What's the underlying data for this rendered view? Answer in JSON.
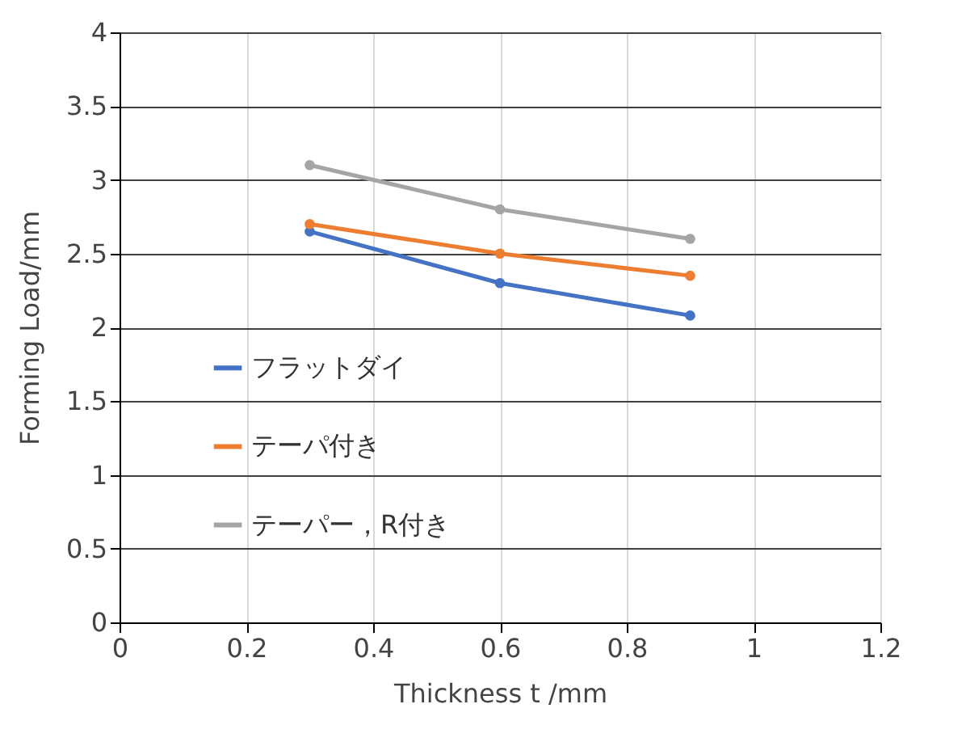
{
  "chart_data": {
    "type": "line",
    "xlabel": "Thickness t /mm",
    "ylabel": "Forming Load/mm",
    "x": [
      0.3,
      0.6,
      0.9
    ],
    "series": [
      {
        "name": "フラットダイ",
        "color": "#4472c4",
        "values": [
          2.65,
          2.3,
          2.08
        ]
      },
      {
        "name": "テーパ付き",
        "color": "#ed7d31",
        "values": [
          2.7,
          2.5,
          2.35
        ]
      },
      {
        "name": "テーパー，R付き",
        "color": "#a5a5a5",
        "values": [
          3.1,
          2.8,
          2.6
        ]
      }
    ],
    "xlim": [
      0,
      1.2
    ],
    "xticks": [
      0,
      0.2,
      0.4,
      0.6,
      0.8,
      1,
      1.2
    ],
    "ylim": [
      0,
      4
    ],
    "yticks": [
      0,
      0.5,
      1,
      1.5,
      2,
      2.5,
      3,
      3.5,
      4
    ],
    "grid": true,
    "legend": "left",
    "marker": "circle",
    "line_style": "solid"
  }
}
